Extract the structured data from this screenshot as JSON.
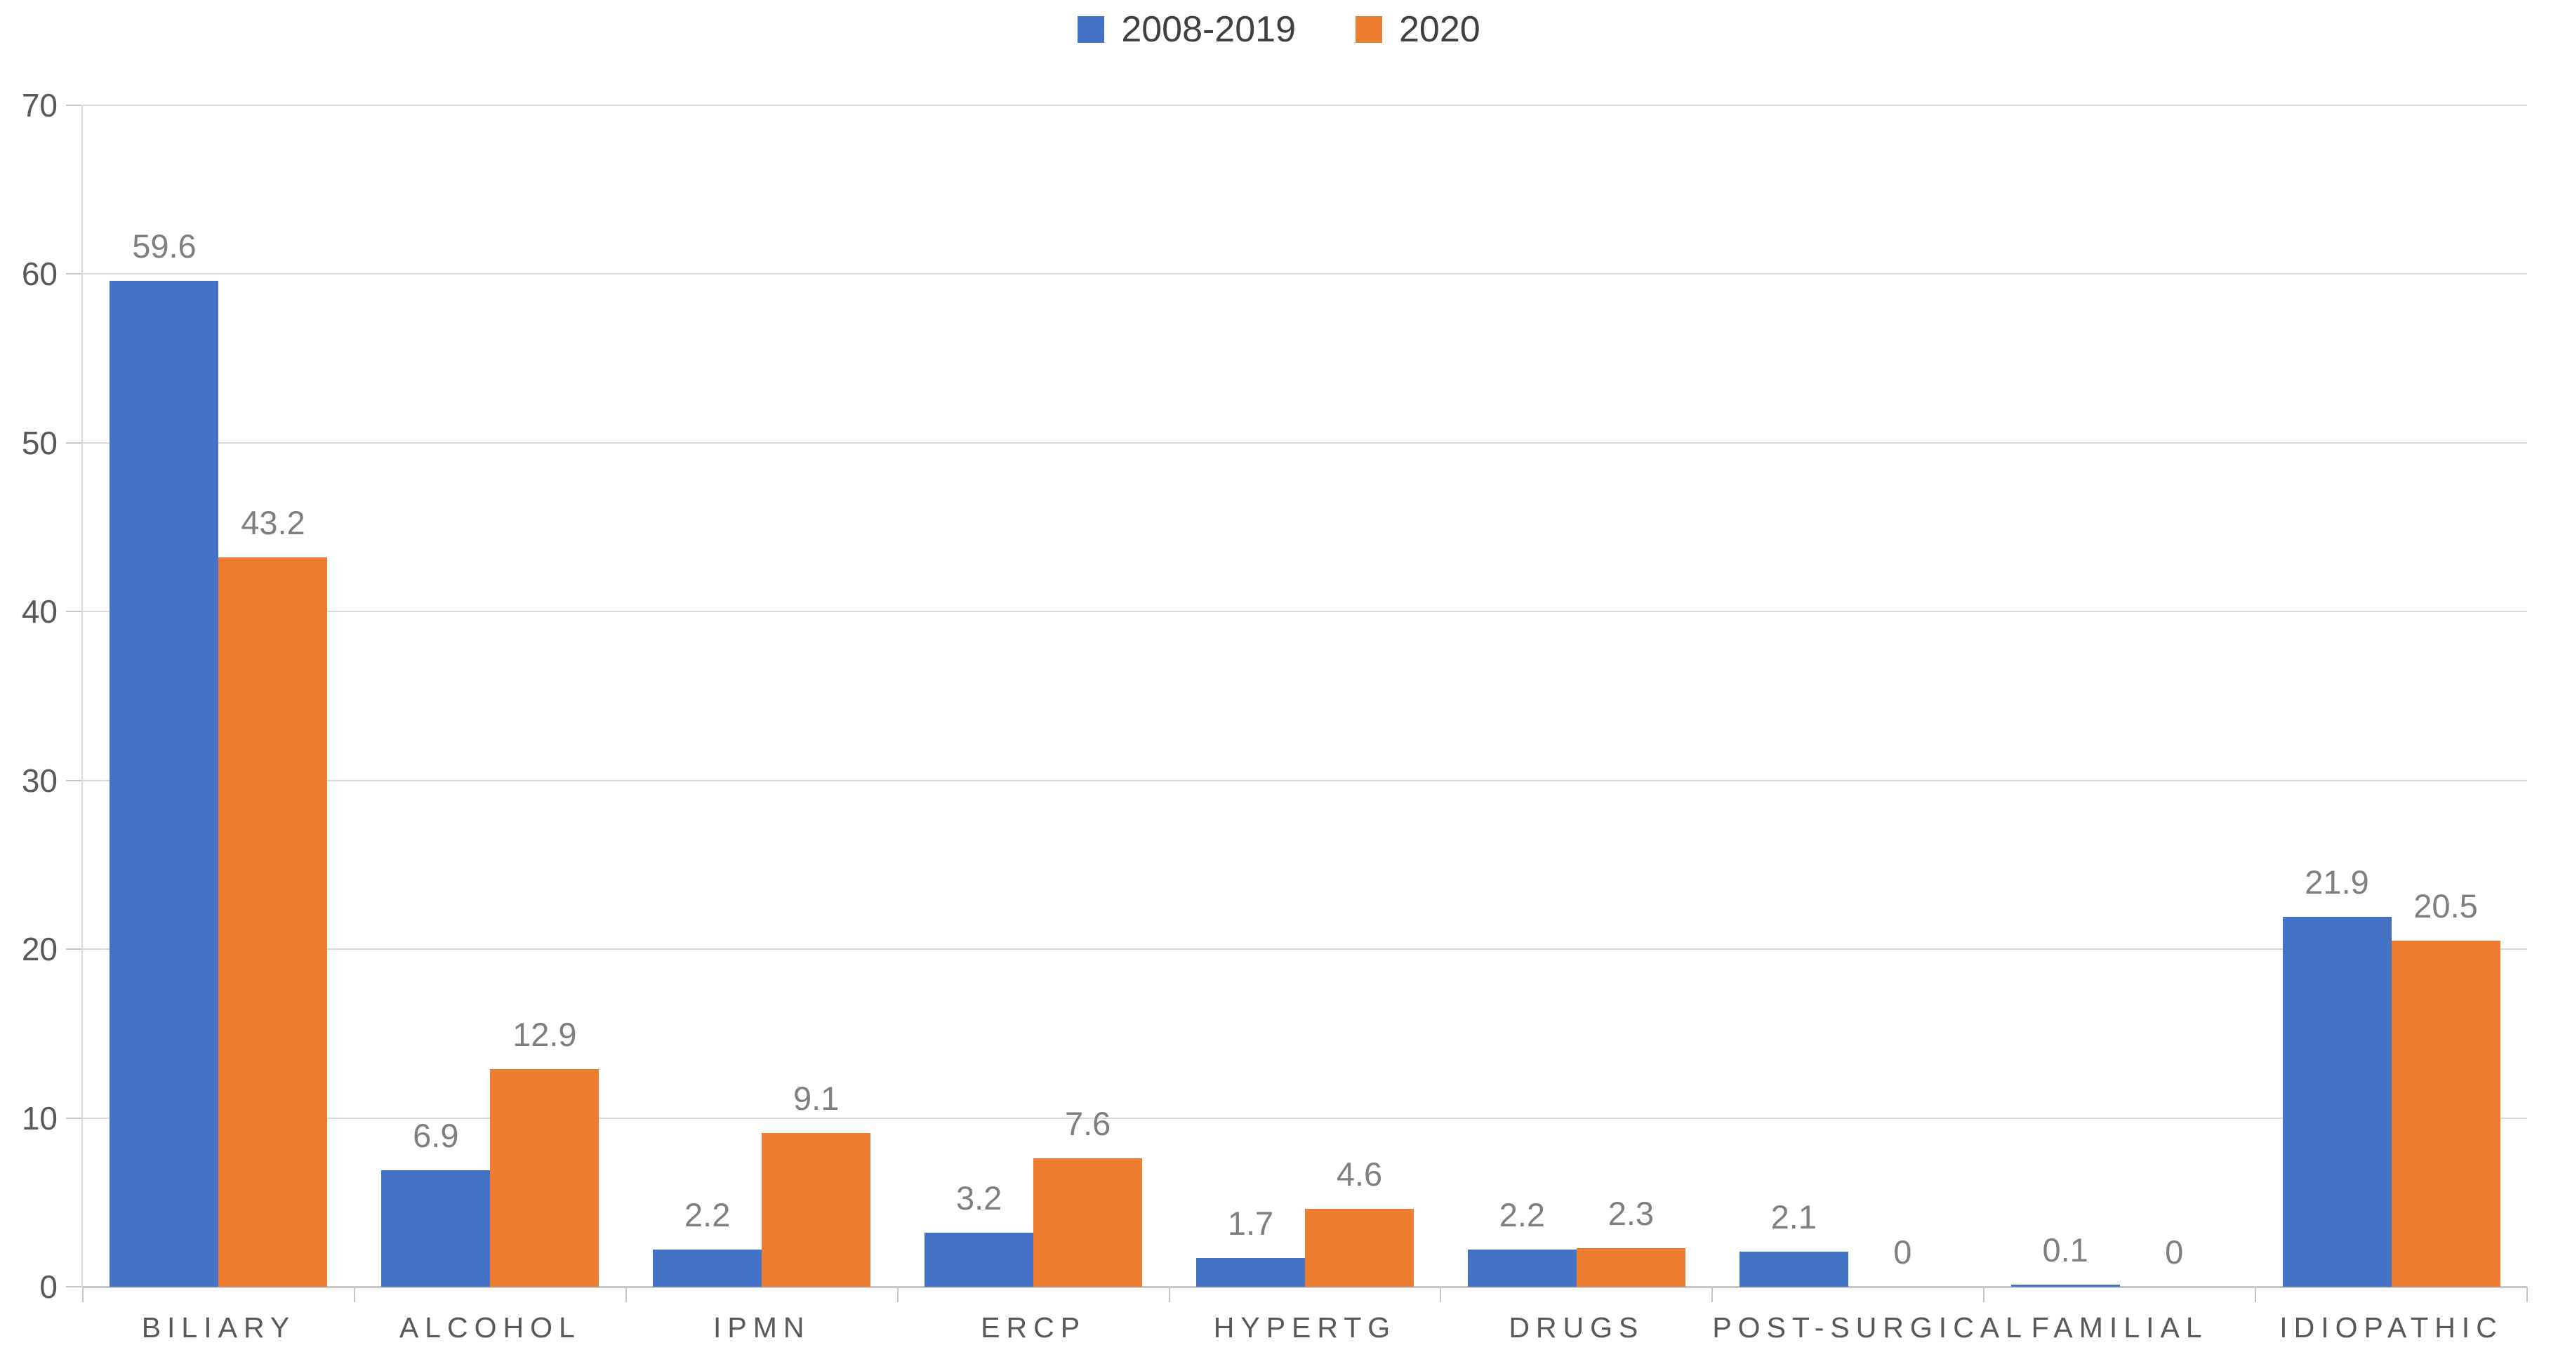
{
  "chart_data": {
    "type": "bar",
    "title": "",
    "categories": [
      "BILIARY",
      "ALCOHOL",
      "IPMN",
      "ERCP",
      "HYPERTG",
      "DRUGS",
      "POST-SURGICAL",
      "FAMILIAL",
      "IDIOPATHIC"
    ],
    "series": [
      {
        "name": "2008-2019",
        "color": "#4472C4",
        "values": [
          59.6,
          6.9,
          2.2,
          3.2,
          1.7,
          2.2,
          2.1,
          0.1,
          21.9
        ],
        "labels": [
          "59.6",
          "6.9",
          "2.2",
          "3.2",
          "1.7",
          "2.2",
          "2.1",
          "0.1",
          "21.9"
        ]
      },
      {
        "name": "2020",
        "color": "#ED7D31",
        "values": [
          43.2,
          12.9,
          9.1,
          7.6,
          4.6,
          2.3,
          0,
          0,
          20.5
        ],
        "labels": [
          "43.2",
          "12.9",
          "9.1",
          "7.6",
          "4.6",
          "2.3",
          "0",
          "0",
          "20.5"
        ]
      }
    ],
    "xlabel": "",
    "ylabel": "",
    "ylim": [
      0,
      70
    ],
    "yticks": [
      "0",
      "10",
      "20",
      "30",
      "40",
      "50",
      "60",
      "70"
    ],
    "grid": true,
    "legend_position": "top",
    "data_labels": true
  },
  "colors": {
    "series_2008_2019": "#4472C4",
    "series_2020": "#ED7D31",
    "gridline": "#D9D9D9",
    "axis_line": "#C6C6C6",
    "data_label_text": "#7F7F7F",
    "axis_label_text": "#595959",
    "legend_text": "#404040",
    "background": "#FFFFFF"
  }
}
